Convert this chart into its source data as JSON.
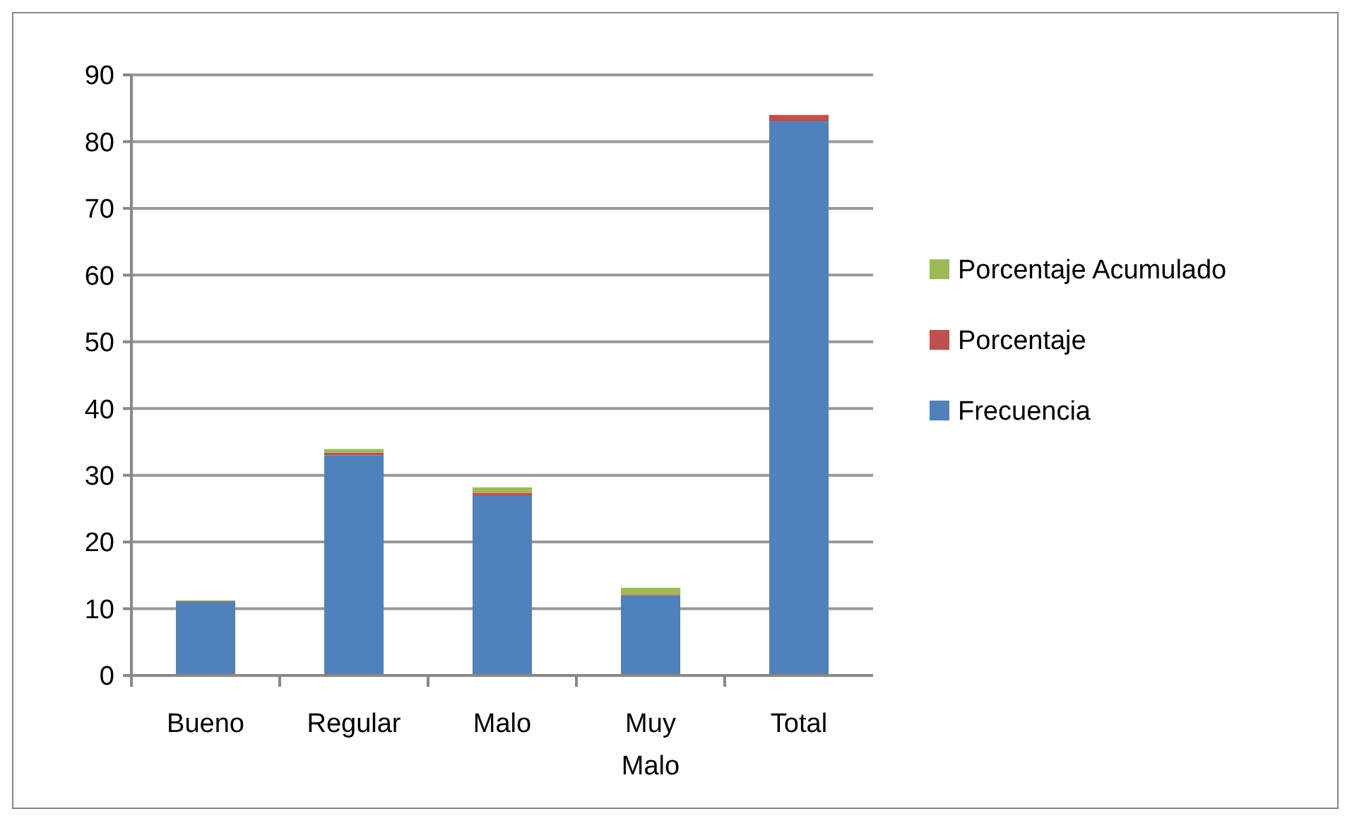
{
  "chart_data": {
    "type": "bar",
    "stacked": true,
    "categories": [
      "Bueno",
      "Regular",
      "Malo",
      "Muy Malo",
      "Total"
    ],
    "series": [
      {
        "name": "Frecuencia",
        "color": "#4f81bd",
        "values": [
          11,
          33,
          27,
          12,
          83
        ]
      },
      {
        "name": "Porcentaje",
        "color": "#c0504d",
        "values": [
          0.13,
          0.4,
          0.33,
          0.14,
          1
        ]
      },
      {
        "name": "Porcentaje Acumulado",
        "color": "#9bbb59",
        "values": [
          0.13,
          0.53,
          0.86,
          1,
          null
        ]
      }
    ],
    "ylim": [
      0,
      90
    ],
    "yticks": [
      0,
      10,
      20,
      30,
      40,
      50,
      60,
      70,
      80,
      90
    ],
    "grid": "y",
    "legend": "right"
  }
}
